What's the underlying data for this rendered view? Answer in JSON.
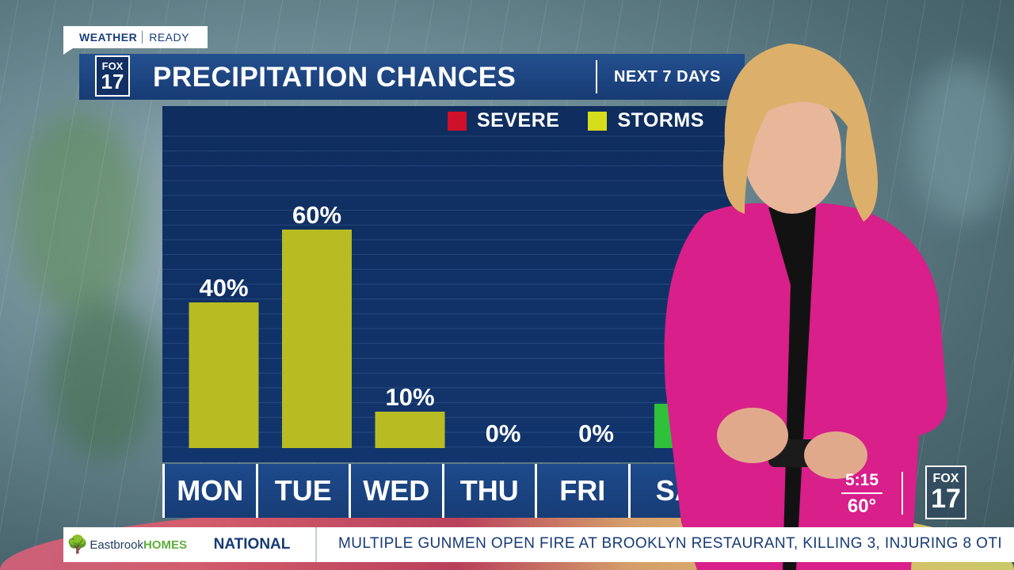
{
  "badge": {
    "word1": "WEATHER",
    "word2": "READY"
  },
  "logo": {
    "line1": "FOX",
    "line2": "17"
  },
  "header": {
    "title": "PRECIPITATION CHANCES",
    "subtitle": "NEXT 7 DAYS"
  },
  "legend": [
    {
      "label": "SEVERE",
      "color": "#d0102a"
    },
    {
      "label": "STORMS",
      "color": "#d7dd1a"
    }
  ],
  "chart_data": {
    "type": "bar",
    "title": "PRECIPITATION CHANCES",
    "subtitle": "NEXT 7 DAYS",
    "categories": [
      "MON",
      "TUE",
      "WED",
      "THU",
      "FRI",
      "SA"
    ],
    "values": [
      40,
      60,
      10,
      0,
      0,
      null
    ],
    "value_labels": [
      "40%",
      "60%",
      "10%",
      "0%",
      "0%",
      ""
    ],
    "bar_colors": [
      "#b8bc22",
      "#b8bc22",
      "#b8bc22",
      "#b8bc22",
      "#b8bc22",
      "#2fc13a"
    ],
    "ylim": [
      0,
      100
    ],
    "grid": true,
    "legend_position": "top-right"
  },
  "clock": {
    "time": "5:15",
    "temp": "60°"
  },
  "bug": {
    "line1": "FOX",
    "line2": "17"
  },
  "ticker": {
    "sponsor_icon": "tree-icon",
    "sponsor_name": "Eastbrook",
    "sponsor_suffix": "HOMES",
    "category": "NATIONAL",
    "headline": "MULTIPLE GUNMEN OPEN FIRE AT BROOKLYN RESTAURANT, KILLING 3, INJURING 8 OTI"
  }
}
